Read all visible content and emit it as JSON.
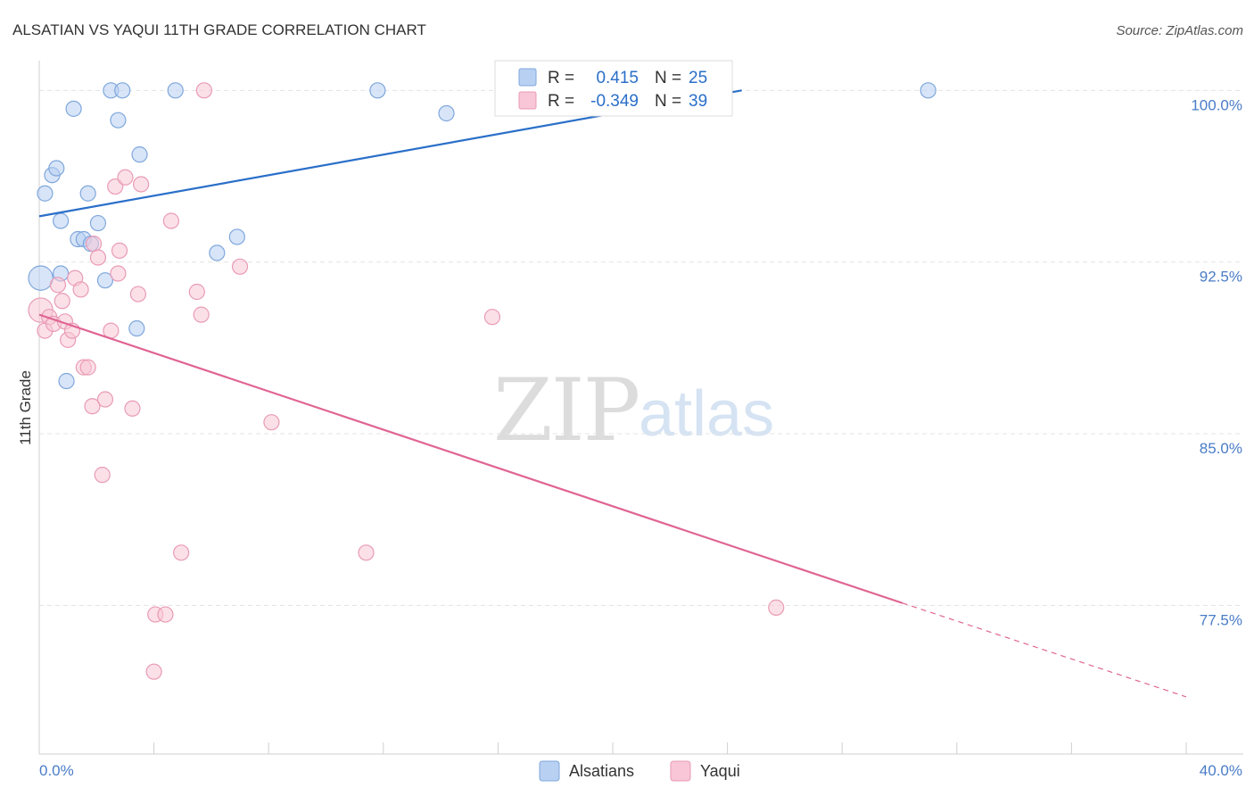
{
  "header": {
    "title": "ALSATIAN VS YAQUI 11TH GRADE CORRELATION CHART",
    "source": "Source: ZipAtlas.com"
  },
  "watermark": {
    "part1": "ZIP",
    "part2": "atlas"
  },
  "colors": {
    "blue_fill": "#b8d0f2",
    "blue_stroke": "#7fa7dc",
    "blue_line": "#2a6fc9",
    "pink_fill": "#f8c6d6",
    "pink_stroke": "#e99bb6",
    "pink_line": "#e06592",
    "axis_label_blue": "#4a7cc7",
    "grid": "#e4e4e4"
  },
  "chart_data": {
    "type": "scatter",
    "title": "ALSATIAN VS YAQUI 11TH GRADE CORRELATION CHART",
    "xlabel": "",
    "ylabel": "11th Grade",
    "xlim": [
      0,
      40
    ],
    "ylim": [
      71.0,
      101.3
    ],
    "x_tick_labels": [
      "0.0%",
      "40.0%"
    ],
    "y_ticks": [
      77.5,
      85.0,
      92.5,
      100.0
    ],
    "y_tick_labels": [
      "77.5%",
      "85.0%",
      "92.5%",
      "100.0%"
    ],
    "grid": true,
    "legend": {
      "position": "top-center",
      "entries": [
        {
          "r_label": "R =",
          "r_value": "0.415",
          "n_label": "N =",
          "n_value": "25"
        },
        {
          "r_label": "R =",
          "r_value": "-0.349",
          "n_label": "N =",
          "n_value": "39"
        }
      ]
    },
    "bottom_legend": [
      "Alsatians",
      "Yaqui"
    ],
    "series": [
      {
        "name": "Alsatians",
        "color": "#b8d0f2",
        "trend": {
          "x": [
            0,
            24.5
          ],
          "y": [
            94.5,
            100.0
          ]
        },
        "points": [
          [
            0.05,
            91.8,
            1.6
          ],
          [
            0.2,
            95.5,
            1
          ],
          [
            0.45,
            96.3,
            1
          ],
          [
            0.6,
            96.6,
            1
          ],
          [
            0.75,
            94.3,
            1
          ],
          [
            0.75,
            92.0,
            1
          ],
          [
            0.95,
            87.3,
            1
          ],
          [
            1.2,
            99.2,
            1
          ],
          [
            1.35,
            93.5,
            1
          ],
          [
            1.55,
            93.5,
            1
          ],
          [
            1.7,
            95.5,
            1
          ],
          [
            1.8,
            93.3,
            1
          ],
          [
            2.05,
            94.2,
            1
          ],
          [
            2.3,
            91.7,
            1
          ],
          [
            2.5,
            100.0,
            1
          ],
          [
            2.75,
            98.7,
            1
          ],
          [
            2.9,
            100.0,
            1
          ],
          [
            3.4,
            89.6,
            1
          ],
          [
            3.5,
            97.2,
            1
          ],
          [
            4.75,
            100.0,
            1
          ],
          [
            6.2,
            92.9,
            1
          ],
          [
            6.9,
            93.6,
            1
          ],
          [
            11.8,
            100.0,
            1
          ],
          [
            14.2,
            99.0,
            1
          ],
          [
            31.0,
            100.0,
            1
          ]
        ]
      },
      {
        "name": "Yaqui",
        "color": "#f8c6d6",
        "trend": {
          "x": [
            0,
            30.1
          ],
          "y": [
            90.2,
            77.6
          ]
        },
        "trend_dashed": {
          "x": [
            30.1,
            40
          ],
          "y": [
            77.6,
            73.5
          ]
        },
        "points": [
          [
            0.05,
            90.4,
            1.6
          ],
          [
            0.2,
            89.5,
            1
          ],
          [
            0.35,
            90.1,
            1
          ],
          [
            0.5,
            89.8,
            1
          ],
          [
            0.65,
            91.5,
            1
          ],
          [
            0.8,
            90.8,
            1
          ],
          [
            0.9,
            89.9,
            1
          ],
          [
            1.0,
            89.1,
            1
          ],
          [
            1.15,
            89.5,
            1
          ],
          [
            1.25,
            91.8,
            1
          ],
          [
            1.45,
            91.3,
            1
          ],
          [
            1.55,
            87.9,
            1
          ],
          [
            1.7,
            87.9,
            1
          ],
          [
            1.85,
            86.2,
            1
          ],
          [
            1.9,
            93.3,
            1
          ],
          [
            2.05,
            92.7,
            1
          ],
          [
            2.2,
            83.2,
            1
          ],
          [
            2.3,
            86.5,
            1
          ],
          [
            2.5,
            89.5,
            1
          ],
          [
            2.65,
            95.8,
            1
          ],
          [
            2.75,
            92.0,
            1
          ],
          [
            2.8,
            93.0,
            1
          ],
          [
            3.0,
            96.2,
            1
          ],
          [
            3.25,
            86.1,
            1
          ],
          [
            3.45,
            91.1,
            1
          ],
          [
            3.55,
            95.9,
            1
          ],
          [
            4.0,
            74.6,
            1
          ],
          [
            4.05,
            77.1,
            1
          ],
          [
            4.4,
            77.1,
            1
          ],
          [
            4.6,
            94.3,
            1
          ],
          [
            4.95,
            79.8,
            1
          ],
          [
            5.5,
            91.2,
            1
          ],
          [
            5.65,
            90.2,
            1
          ],
          [
            5.75,
            100.0,
            1
          ],
          [
            7.0,
            92.3,
            1
          ],
          [
            8.1,
            85.5,
            1
          ],
          [
            11.4,
            79.8,
            1
          ],
          [
            15.8,
            90.1,
            1
          ],
          [
            25.7,
            77.4,
            1
          ]
        ]
      }
    ]
  }
}
